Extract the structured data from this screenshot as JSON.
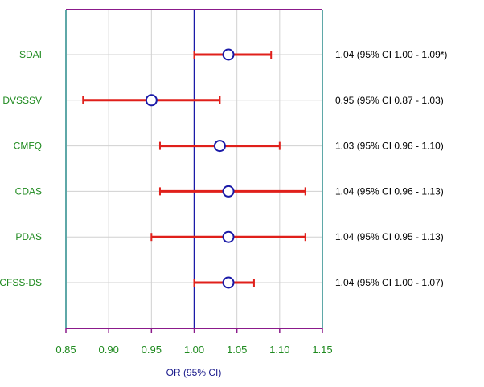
{
  "chart_data": {
    "type": "forest",
    "xlabel": "OR (95% CI)",
    "xlim": [
      0.85,
      1.15
    ],
    "xticks": [
      "0.85",
      "0.90",
      "0.95",
      "1.00",
      "1.05",
      "1.10",
      "1.15"
    ],
    "xtick_values": [
      0.85,
      0.9,
      0.95,
      1.0,
      1.05,
      1.1,
      1.15
    ],
    "reference_line": 1.0,
    "grid": true,
    "rows": [
      {
        "label": "SDAI",
        "or": 1.04,
        "lo": 1.0,
        "hi": 1.09,
        "text": "1.04 (95% CI 1.00 - 1.09*)"
      },
      {
        "label": "DVSSSV",
        "or": 0.95,
        "lo": 0.87,
        "hi": 1.03,
        "text": "0.95 (95% CI 0.87 - 1.03)"
      },
      {
        "label": "CMFQ",
        "or": 1.03,
        "lo": 0.96,
        "hi": 1.1,
        "text": "1.03 (95% CI 0.96 - 1.10)"
      },
      {
        "label": "CDAS",
        "or": 1.04,
        "lo": 0.96,
        "hi": 1.13,
        "text": "1.04 (95% CI 0.96 - 1.13)"
      },
      {
        "label": "PDAS",
        "or": 1.04,
        "lo": 0.95,
        "hi": 1.13,
        "text": "1.04 (95% CI 0.95 - 1.13)"
      },
      {
        "label": "CFSS-DS",
        "or": 1.04,
        "lo": 1.0,
        "hi": 1.07,
        "text": "1.04 (95% CI 1.00 - 1.07)"
      }
    ],
    "colors": {
      "ci_line": "#e0201b",
      "marker_stroke": "#1a1aa8",
      "marker_fill": "#ffffff",
      "reference_line": "#1a1aa8",
      "frame_top_bottom": "#8b1a8b",
      "frame_sides": "#5fa8a8",
      "grid": "#d0d0d0",
      "category_text": "#1f8a1f",
      "tick_text": "#1f8a1f",
      "axis_title": "#1a1a8c"
    }
  }
}
